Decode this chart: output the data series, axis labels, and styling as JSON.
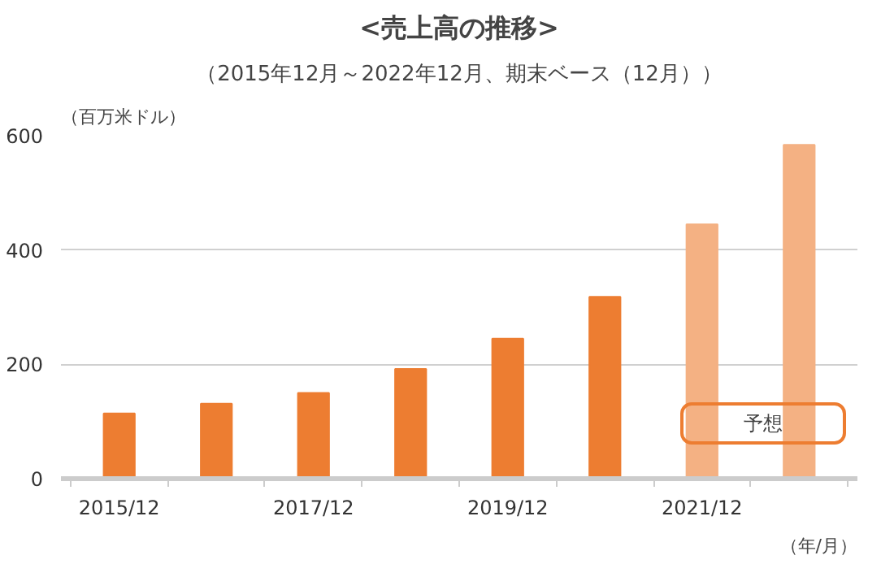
{
  "chart_data": {
    "type": "bar",
    "title": "<売上高の推移>",
    "subtitle": "（2015年12月～2022年12月、期末ベース（12月））",
    "ylabel": "（百万米ドル）",
    "xlabel": "（年/月）",
    "categories": [
      "2015/12",
      null,
      "2017/12",
      null,
      "2019/12",
      null,
      "2021/12",
      null
    ],
    "values": [
      114,
      131,
      150,
      192,
      245,
      318,
      445,
      584
    ],
    "colors": [
      "#ed7d31",
      "#ed7d31",
      "#ed7d31",
      "#ed7d31",
      "#ed7d31",
      "#ed7d31",
      "#f4b183",
      "#f4b183"
    ],
    "ylim": [
      0,
      600
    ],
    "yticks": [
      0,
      200,
      400,
      600
    ],
    "grid": "y",
    "annotations": [
      "予想"
    ]
  }
}
